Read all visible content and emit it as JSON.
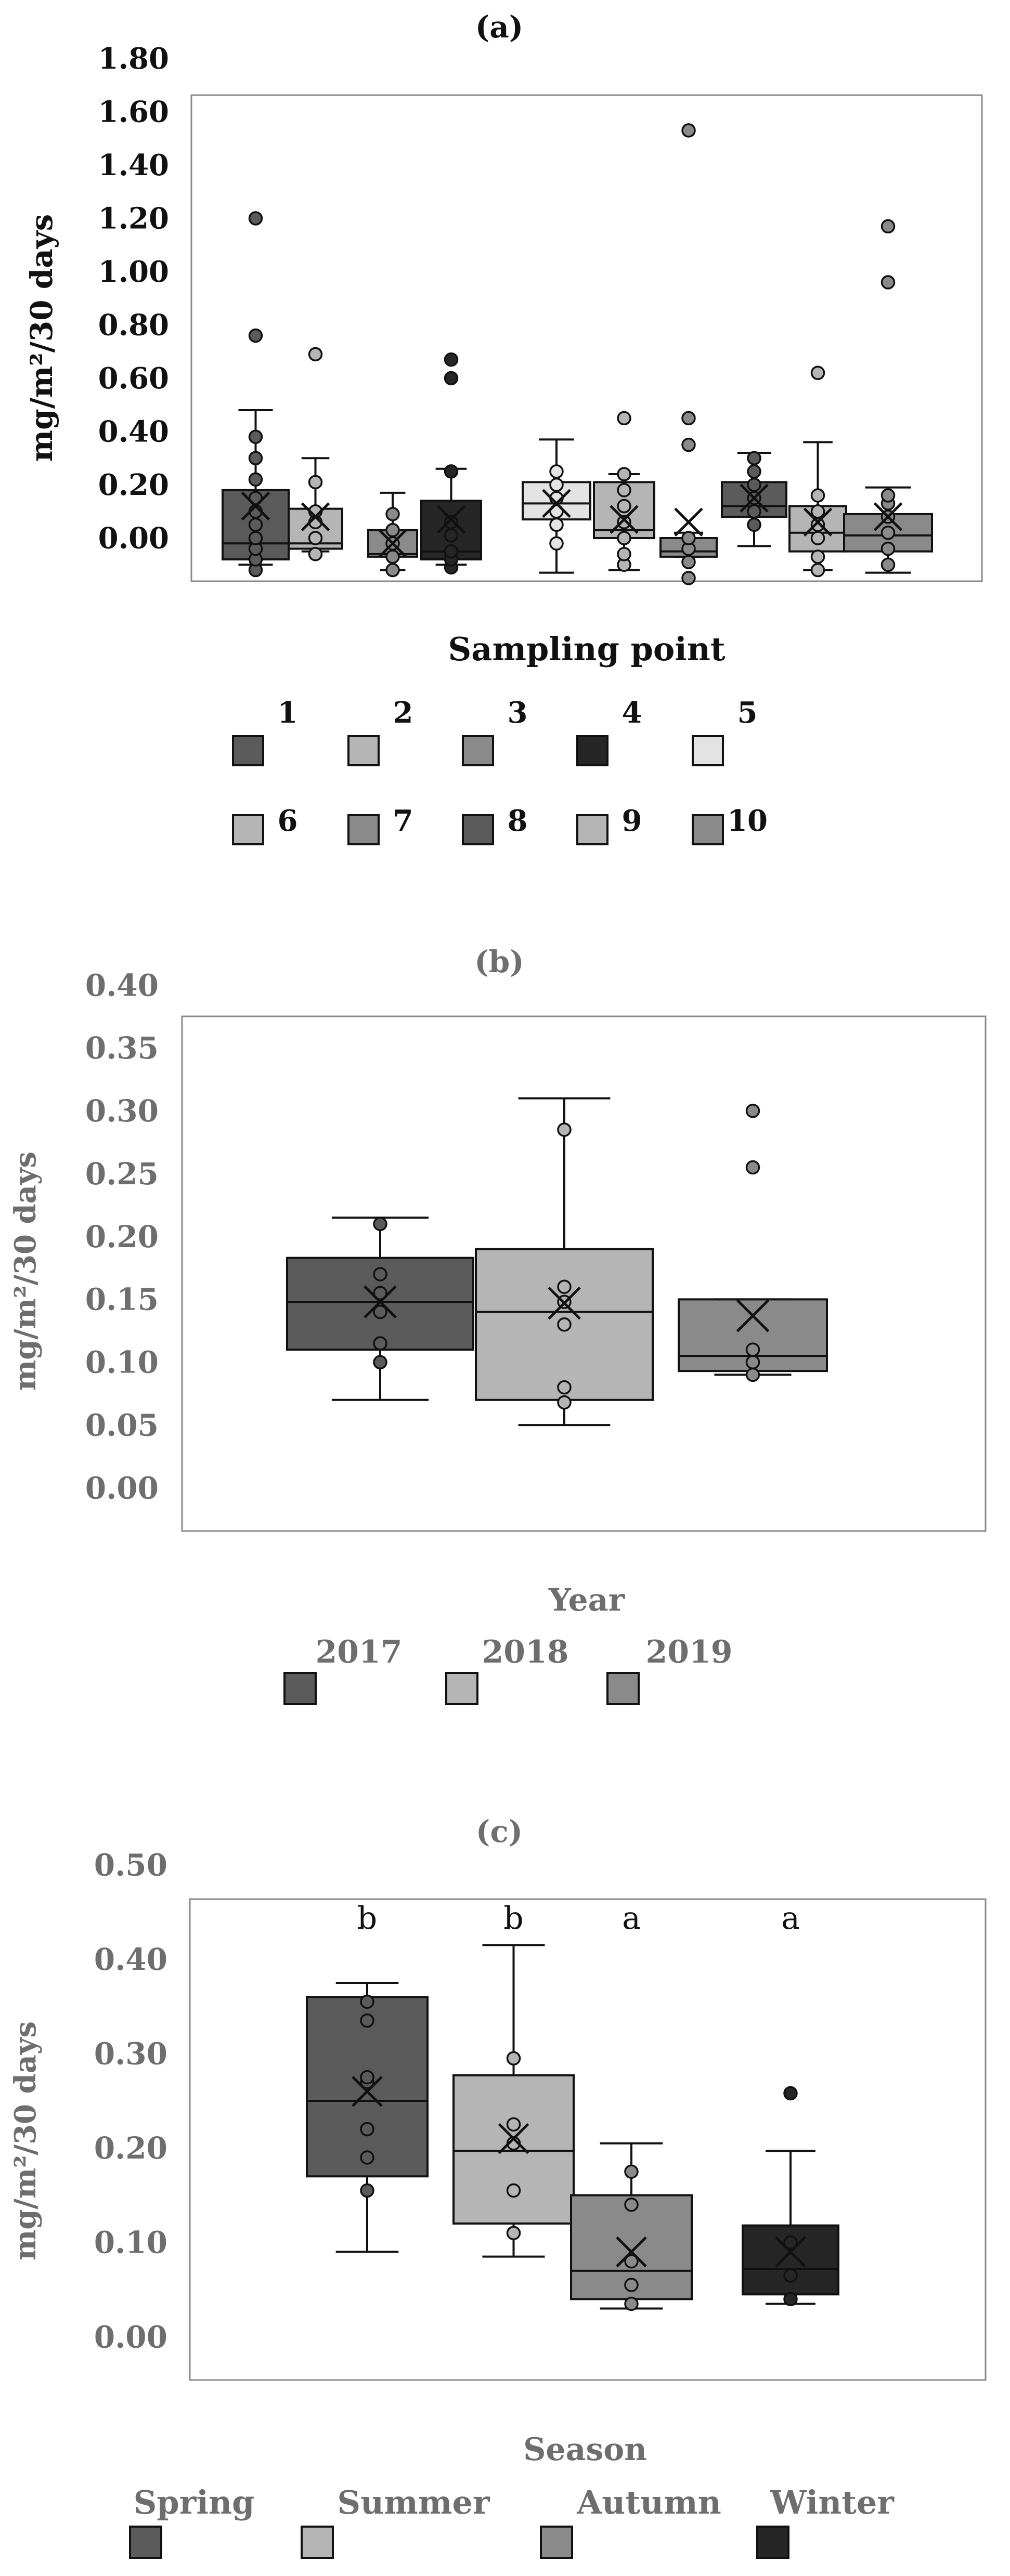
{
  "chart_data": [
    {
      "type": "box",
      "panel_label": "(a)",
      "ylabel": "mg/m²/30 days",
      "ylim": [
        -0.15,
        1.65
      ],
      "y_ticks": [
        "1.80",
        "1.60",
        "1.40",
        "1.20",
        "1.00",
        "0.80",
        "0.60",
        "0.40",
        "0.20",
        "0.00"
      ],
      "legend_title": "Sampling point",
      "legend_placement": "bottom",
      "series": [
        {
          "name": "1",
          "color": "#5b5b5b",
          "min": -0.1,
          "q1": -0.08,
          "median": -0.02,
          "q3": 0.18,
          "max": 0.48,
          "mean": 0.12,
          "outliers": [
            1.2,
            0.76
          ],
          "points": [
            -0.12,
            -0.08,
            -0.04,
            0.0,
            0.05,
            0.1,
            0.15,
            0.22,
            0.3,
            0.38
          ]
        },
        {
          "name": "2",
          "color": "#b5b5b5",
          "min": -0.05,
          "q1": -0.04,
          "median": -0.02,
          "q3": 0.11,
          "max": 0.3,
          "mean": 0.08,
          "outliers": [
            0.69
          ],
          "points": [
            -0.06,
            0.0,
            0.06,
            0.1,
            0.21
          ]
        },
        {
          "name": "3",
          "color": "#8a8a8a",
          "min": -0.12,
          "q1": -0.07,
          "median": -0.06,
          "q3": 0.03,
          "max": 0.17,
          "mean": -0.02,
          "outliers": [],
          "points": [
            -0.12,
            -0.07,
            -0.02,
            0.03,
            0.09
          ]
        },
        {
          "name": "4",
          "color": "#262626",
          "min": -0.1,
          "q1": -0.08,
          "median": -0.05,
          "q3": 0.14,
          "max": 0.26,
          "mean": 0.07,
          "outliers": [
            0.67,
            0.6
          ],
          "points": [
            -0.11,
            -0.08,
            -0.05,
            0.01,
            0.06,
            0.25
          ]
        },
        {
          "name": "5",
          "color": "#e3e3e3",
          "min": -0.13,
          "q1": 0.07,
          "median": 0.13,
          "q3": 0.21,
          "max": 0.37,
          "mean": 0.13,
          "outliers": [],
          "points": [
            -0.02,
            0.05,
            0.1,
            0.15,
            0.2,
            0.25
          ]
        },
        {
          "name": "6",
          "color": "#b5b5b5",
          "min": -0.12,
          "q1": 0.0,
          "median": 0.03,
          "q3": 0.21,
          "max": 0.24,
          "mean": 0.07,
          "outliers": [
            0.45
          ],
          "points": [
            -0.1,
            -0.06,
            0.0,
            0.06,
            0.12,
            0.18,
            0.24
          ]
        },
        {
          "name": "7",
          "color": "#8a8a8a",
          "min": -0.07,
          "q1": -0.07,
          "median": -0.05,
          "q3": 0.0,
          "max": 0.02,
          "mean": 0.06,
          "outliers": [
            1.53,
            0.45,
            0.35
          ],
          "points": [
            -0.15,
            -0.09,
            -0.04,
            0.0
          ]
        },
        {
          "name": "8",
          "color": "#5b5b5b",
          "min": -0.03,
          "q1": 0.08,
          "median": 0.12,
          "q3": 0.21,
          "max": 0.32,
          "mean": 0.15,
          "outliers": [],
          "points": [
            0.05,
            0.1,
            0.15,
            0.2,
            0.25,
            0.3
          ]
        },
        {
          "name": "9",
          "color": "#b5b5b5",
          "min": -0.12,
          "q1": -0.05,
          "median": 0.02,
          "q3": 0.12,
          "max": 0.36,
          "mean": 0.06,
          "outliers": [
            0.62
          ],
          "points": [
            -0.12,
            -0.07,
            0.0,
            0.05,
            0.1,
            0.16
          ]
        },
        {
          "name": "10",
          "color": "#8a8a8a",
          "min": -0.13,
          "q1": -0.05,
          "median": 0.01,
          "q3": 0.09,
          "max": 0.19,
          "mean": 0.08,
          "outliers": [
            1.17,
            0.96
          ],
          "points": [
            -0.1,
            -0.04,
            0.02,
            0.08,
            0.13,
            0.16
          ]
        }
      ]
    },
    {
      "type": "box",
      "panel_label": "(b)",
      "ylabel": "mg/m²/30 days",
      "ylim": [
        0,
        0.4
      ],
      "y_ticks": [
        "0.40",
        "0.35",
        "0.30",
        "0.25",
        "0.20",
        "0.15",
        "0.10",
        "0.05",
        "0.00"
      ],
      "legend_title": "Year",
      "legend_placement": "bottom",
      "series": [
        {
          "name": "2017",
          "color": "#5b5b5b",
          "min": 0.07,
          "q1": 0.11,
          "median": 0.148,
          "q3": 0.183,
          "max": 0.215,
          "mean": 0.148,
          "outliers": [],
          "points": [
            0.1,
            0.115,
            0.14,
            0.155,
            0.17,
            0.21
          ]
        },
        {
          "name": "2018",
          "color": "#b5b5b5",
          "min": 0.05,
          "q1": 0.07,
          "median": 0.14,
          "q3": 0.19,
          "max": 0.31,
          "mean": 0.147,
          "outliers": [],
          "points": [
            0.068,
            0.08,
            0.13,
            0.148,
            0.16,
            0.285
          ]
        },
        {
          "name": "2019",
          "color": "#8a8a8a",
          "min": 0.09,
          "q1": 0.093,
          "median": 0.105,
          "q3": 0.15,
          "max": 0.15,
          "mean": 0.137,
          "outliers": [
            0.3,
            0.255
          ],
          "points": [
            0.09,
            0.1,
            0.11
          ]
        }
      ]
    },
    {
      "type": "box",
      "panel_label": "(c)",
      "ylabel": "mg/m²/30 days",
      "ylim": [
        -0.03,
        0.5
      ],
      "y_ticks": [
        "0.50",
        "0.40",
        "0.30",
        "0.20",
        "0.10",
        "0.00"
      ],
      "legend_title": "Season",
      "legend_placement": "bottom",
      "series": [
        {
          "name": "Spring",
          "color": "#5b5b5b",
          "letter": "b",
          "min": 0.09,
          "q1": 0.17,
          "median": 0.25,
          "q3": 0.36,
          "max": 0.375,
          "mean": 0.26,
          "outliers": [],
          "points": [
            0.155,
            0.19,
            0.22,
            0.27,
            0.275,
            0.335,
            0.355
          ]
        },
        {
          "name": "Summer",
          "color": "#b5b5b5",
          "letter": "b",
          "min": 0.085,
          "q1": 0.12,
          "median": 0.197,
          "q3": 0.277,
          "max": 0.415,
          "mean": 0.21,
          "outliers": [],
          "points": [
            0.11,
            0.155,
            0.205,
            0.225,
            0.295
          ]
        },
        {
          "name": "Autumn",
          "color": "#8a8a8a",
          "letter": "a",
          "min": 0.03,
          "q1": 0.04,
          "median": 0.07,
          "q3": 0.15,
          "max": 0.205,
          "mean": 0.09,
          "outliers": [],
          "points": [
            0.035,
            0.055,
            0.08,
            0.14,
            0.175
          ]
        },
        {
          "name": "Winter",
          "color": "#262626",
          "letter": "a",
          "min": 0.035,
          "q1": 0.045,
          "median": 0.072,
          "q3": 0.118,
          "max": 0.197,
          "mean": 0.09,
          "outliers": [
            0.258
          ],
          "points": [
            0.04,
            0.065,
            0.1
          ]
        }
      ]
    }
  ]
}
